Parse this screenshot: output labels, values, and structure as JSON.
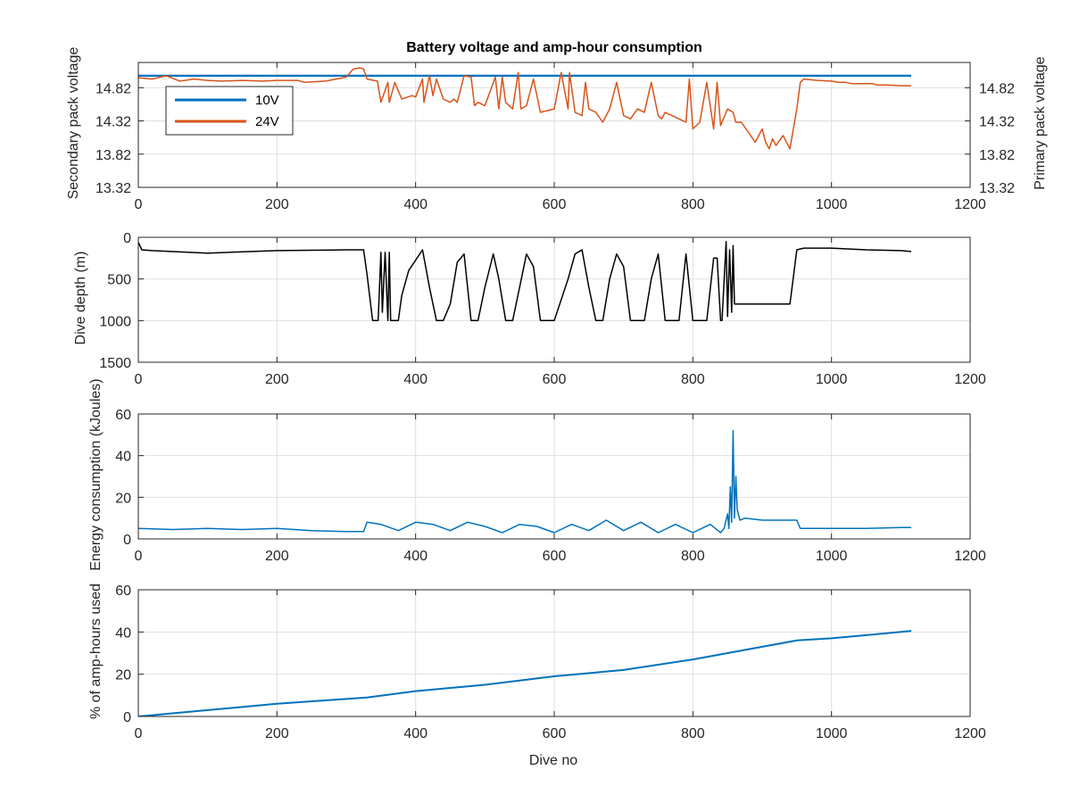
{
  "colors": {
    "blue": "#1f77b4",
    "orange": "#d95319",
    "black": "#000000",
    "grid": "#dfdfdf"
  },
  "chart_data": [
    {
      "type": "line",
      "title": "Battery voltage and amp-hour consumption",
      "xlabel": "",
      "ylabel_left": "Secondary pack voltage",
      "ylabel_right": "Primary pack voltage",
      "xlim": [
        0,
        1200
      ],
      "xticks": [
        0,
        200,
        400,
        600,
        800,
        1000,
        1200
      ],
      "xtick_labels": [
        "0",
        "200",
        "400",
        "600",
        "800",
        "1000",
        "1200"
      ],
      "ylim_left": [
        13.32,
        15.2
      ],
      "ylim_right": [
        13.32,
        15.2
      ],
      "yticks": [
        13.32,
        13.82,
        14.32,
        14.82
      ],
      "ytick_labels": [
        "13.32",
        "13.82",
        "14.32",
        "14.82"
      ],
      "grid": true,
      "legend": "top-left",
      "series": [
        {
          "name": "10V",
          "axis": "left",
          "color": "#0072bd",
          "x": [
            0,
            1115
          ],
          "y": [
            15.0,
            15.0
          ]
        },
        {
          "name": "24V",
          "axis": "right",
          "color": "#d95319",
          "x": [
            0,
            20,
            40,
            60,
            80,
            100,
            120,
            150,
            180,
            200,
            230,
            240,
            270,
            300,
            310,
            320,
            325,
            330,
            345,
            350,
            360,
            362,
            370,
            380,
            395,
            400,
            410,
            412,
            420,
            425,
            430,
            440,
            450,
            455,
            460,
            470,
            480,
            485,
            490,
            500,
            515,
            520,
            525,
            530,
            540,
            548,
            552,
            560,
            570,
            580,
            600,
            610,
            620,
            622,
            630,
            640,
            645,
            650,
            660,
            670,
            680,
            690,
            700,
            710,
            720,
            730,
            740,
            750,
            755,
            760,
            770,
            780,
            790,
            795,
            800,
            810,
            820,
            830,
            835,
            840,
            850,
            858,
            862,
            870,
            880,
            890,
            900,
            905,
            910,
            915,
            920,
            930,
            940,
            945,
            950,
            955,
            960,
            980,
            1000,
            1010,
            1020,
            1030,
            1050,
            1060,
            1065,
            1070,
            1080,
            1100,
            1115
          ],
          "y": [
            14.97,
            14.95,
            15.0,
            14.92,
            14.95,
            14.93,
            14.92,
            14.93,
            14.92,
            14.93,
            14.93,
            14.9,
            14.92,
            14.98,
            15.1,
            15.12,
            15.1,
            14.95,
            14.92,
            14.6,
            14.9,
            14.6,
            14.9,
            14.65,
            14.7,
            14.68,
            14.95,
            14.6,
            15.0,
            14.7,
            14.95,
            14.65,
            14.6,
            14.65,
            14.6,
            15.0,
            14.98,
            14.55,
            14.6,
            14.55,
            14.98,
            14.5,
            14.98,
            14.6,
            14.5,
            15.05,
            14.5,
            14.55,
            14.95,
            14.45,
            14.5,
            15.05,
            14.5,
            15.05,
            14.45,
            14.4,
            14.9,
            14.5,
            14.45,
            14.3,
            14.5,
            14.9,
            14.4,
            14.35,
            14.5,
            14.45,
            14.9,
            14.4,
            14.35,
            14.45,
            14.4,
            14.35,
            14.3,
            14.95,
            14.2,
            14.3,
            14.9,
            14.2,
            14.9,
            14.25,
            14.5,
            14.45,
            14.3,
            14.3,
            14.15,
            14.0,
            14.2,
            14.0,
            13.9,
            14.05,
            13.95,
            14.1,
            13.9,
            14.2,
            14.5,
            14.9,
            14.95,
            14.93,
            14.92,
            14.9,
            14.9,
            14.88,
            14.88,
            14.88,
            14.86,
            14.86,
            14.86,
            14.85,
            14.85
          ]
        }
      ]
    },
    {
      "type": "line",
      "title": "",
      "xlabel": "",
      "ylabel": "Dive depth (m)",
      "xlim": [
        0,
        1200
      ],
      "xticks": [
        0,
        200,
        400,
        600,
        800,
        1000,
        1200
      ],
      "xtick_labels": [
        "0",
        "200",
        "400",
        "600",
        "800",
        "1000",
        "1200"
      ],
      "ylim": [
        0,
        1500
      ],
      "y_reversed": true,
      "yticks": [
        0,
        500,
        1000,
        1500
      ],
      "ytick_labels": [
        "0",
        "500",
        "1000",
        "1500"
      ],
      "grid": true,
      "series": [
        {
          "name": "",
          "color": "#000000",
          "x": [
            0,
            5,
            20,
            100,
            200,
            300,
            325,
            330,
            338,
            342,
            346,
            350,
            352,
            356,
            360,
            362,
            364,
            375,
            380,
            390,
            410,
            420,
            430,
            435,
            440,
            450,
            460,
            470,
            480,
            485,
            490,
            500,
            512,
            520,
            530,
            540,
            550,
            560,
            570,
            580,
            590,
            600,
            620,
            630,
            640,
            650,
            660,
            670,
            680,
            690,
            700,
            710,
            720,
            730,
            740,
            750,
            760,
            770,
            780,
            790,
            800,
            810,
            820,
            830,
            835,
            840,
            842,
            848,
            850,
            853,
            856,
            858,
            860,
            865,
            870,
            900,
            940,
            950,
            960,
            1000,
            1050,
            1100,
            1115
          ],
          "y": [
            60,
            150,
            160,
            190,
            160,
            150,
            150,
            450,
            1000,
            1000,
            1000,
            180,
            900,
            180,
            1000,
            180,
            1000,
            1000,
            700,
            400,
            150,
            600,
            1000,
            1000,
            1000,
            800,
            300,
            200,
            1000,
            1000,
            1000,
            600,
            200,
            500,
            1000,
            1000,
            600,
            200,
            350,
            1000,
            1000,
            1000,
            500,
            200,
            150,
            600,
            1000,
            1000,
            500,
            200,
            350,
            1000,
            1000,
            1000,
            500,
            200,
            1000,
            1000,
            1000,
            200,
            1000,
            1000,
            1000,
            250,
            250,
            1000,
            1000,
            50,
            950,
            150,
            900,
            100,
            800,
            800,
            800,
            800,
            800,
            150,
            130,
            130,
            150,
            160,
            170
          ]
        }
      ]
    },
    {
      "type": "line",
      "title": "",
      "xlabel": "",
      "ylabel": "Energy consumption (kJoules)",
      "xlim": [
        0,
        1200
      ],
      "xticks": [
        0,
        200,
        400,
        600,
        800,
        1000,
        1200
      ],
      "xtick_labels": [
        "0",
        "200",
        "400",
        "600",
        "800",
        "1000",
        "1200"
      ],
      "ylim": [
        0,
        60
      ],
      "yticks": [
        0,
        20,
        40,
        60
      ],
      "ytick_labels": [
        "0",
        "20",
        "40",
        "60"
      ],
      "grid": true,
      "series": [
        {
          "name": "",
          "color": "#0072bd",
          "x": [
            0,
            50,
            100,
            150,
            200,
            250,
            300,
            325,
            330,
            350,
            375,
            400,
            425,
            450,
            475,
            500,
            525,
            550,
            575,
            600,
            625,
            650,
            675,
            700,
            725,
            750,
            775,
            800,
            825,
            840,
            845,
            850,
            852,
            854,
            856,
            858,
            860,
            862,
            864,
            868,
            875,
            900,
            950,
            955,
            1000,
            1050,
            1100,
            1115
          ],
          "y": [
            5,
            4.5,
            5,
            4.5,
            5,
            4,
            3.5,
            3.5,
            8,
            7,
            4,
            8,
            7,
            4,
            8,
            6,
            3,
            7,
            6,
            3,
            7,
            4,
            9,
            4,
            8,
            3,
            7,
            3,
            7,
            3,
            5,
            12,
            5,
            25,
            8,
            52,
            10,
            30,
            14,
            9,
            10,
            9,
            9,
            5,
            5,
            5,
            5.5,
            5.5
          ]
        }
      ]
    },
    {
      "type": "line",
      "title": "",
      "xlabel": "Dive no",
      "ylabel": "% of amp-hours used",
      "xlim": [
        0,
        1200
      ],
      "xticks": [
        0,
        200,
        400,
        600,
        800,
        1000,
        1200
      ],
      "xtick_labels": [
        "0",
        "200",
        "400",
        "600",
        "800",
        "1000",
        "1200"
      ],
      "ylim": [
        0,
        60
      ],
      "yticks": [
        0,
        20,
        40,
        60
      ],
      "ytick_labels": [
        "0",
        "20",
        "40",
        "60"
      ],
      "grid": true,
      "series": [
        {
          "name": "",
          "color": "#0072bd",
          "x": [
            0,
            100,
            200,
            330,
            400,
            500,
            600,
            700,
            800,
            850,
            900,
            950,
            1000,
            1050,
            1100,
            1115
          ],
          "y": [
            0,
            3,
            6,
            9,
            12,
            15,
            19,
            22,
            27,
            30,
            33,
            36,
            37,
            38.5,
            40,
            40.5
          ]
        }
      ]
    }
  ]
}
